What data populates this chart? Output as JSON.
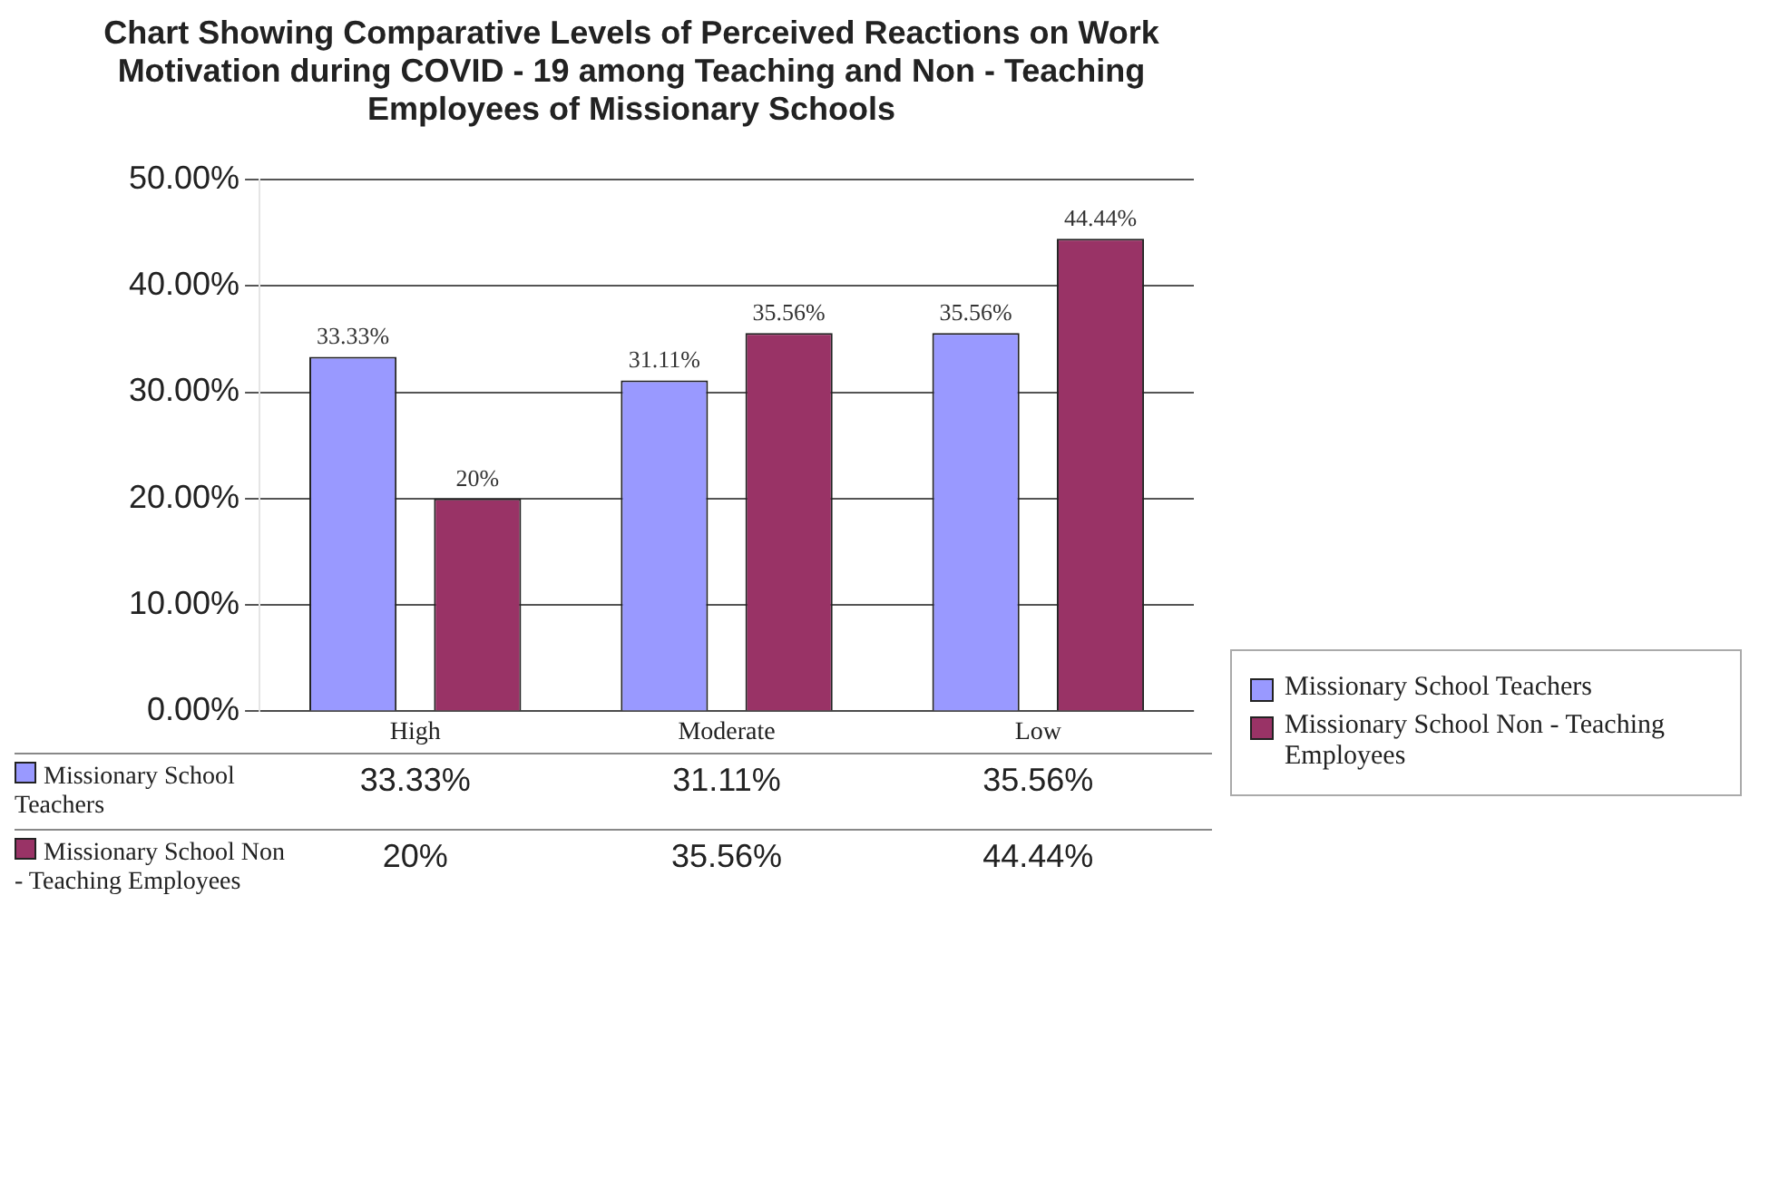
{
  "chart_data": {
    "type": "bar",
    "title": "Chart Showing Comparative Levels of Perceived Reactions on Work Motivation during COVID - 19 among Teaching and Non - Teaching Employees of Missionary Schools",
    "categories": [
      "High",
      "Moderate",
      "Low"
    ],
    "series": [
      {
        "name": "Missionary School Teachers",
        "color": "#9999ff",
        "values": [
          33.33,
          31.11,
          35.56
        ],
        "value_labels": [
          "33.33%",
          "31.11%",
          "35.56%"
        ]
      },
      {
        "name": "Missionary School Non - Teaching Employees",
        "color": "#993366",
        "values": [
          20,
          35.56,
          44.44
        ],
        "value_labels": [
          "20%",
          "35.56%",
          "44.44%"
        ]
      }
    ],
    "ylim": [
      0,
      50
    ],
    "yticks": [
      {
        "value": 0,
        "label": "0.00%"
      },
      {
        "value": 10,
        "label": "10.00%"
      },
      {
        "value": 20,
        "label": "20.00%"
      },
      {
        "value": 30,
        "label": "30.00%"
      },
      {
        "value": 40,
        "label": "40.00%"
      },
      {
        "value": 50,
        "label": "50.00%"
      }
    ],
    "grid": "y",
    "legend": "right"
  }
}
